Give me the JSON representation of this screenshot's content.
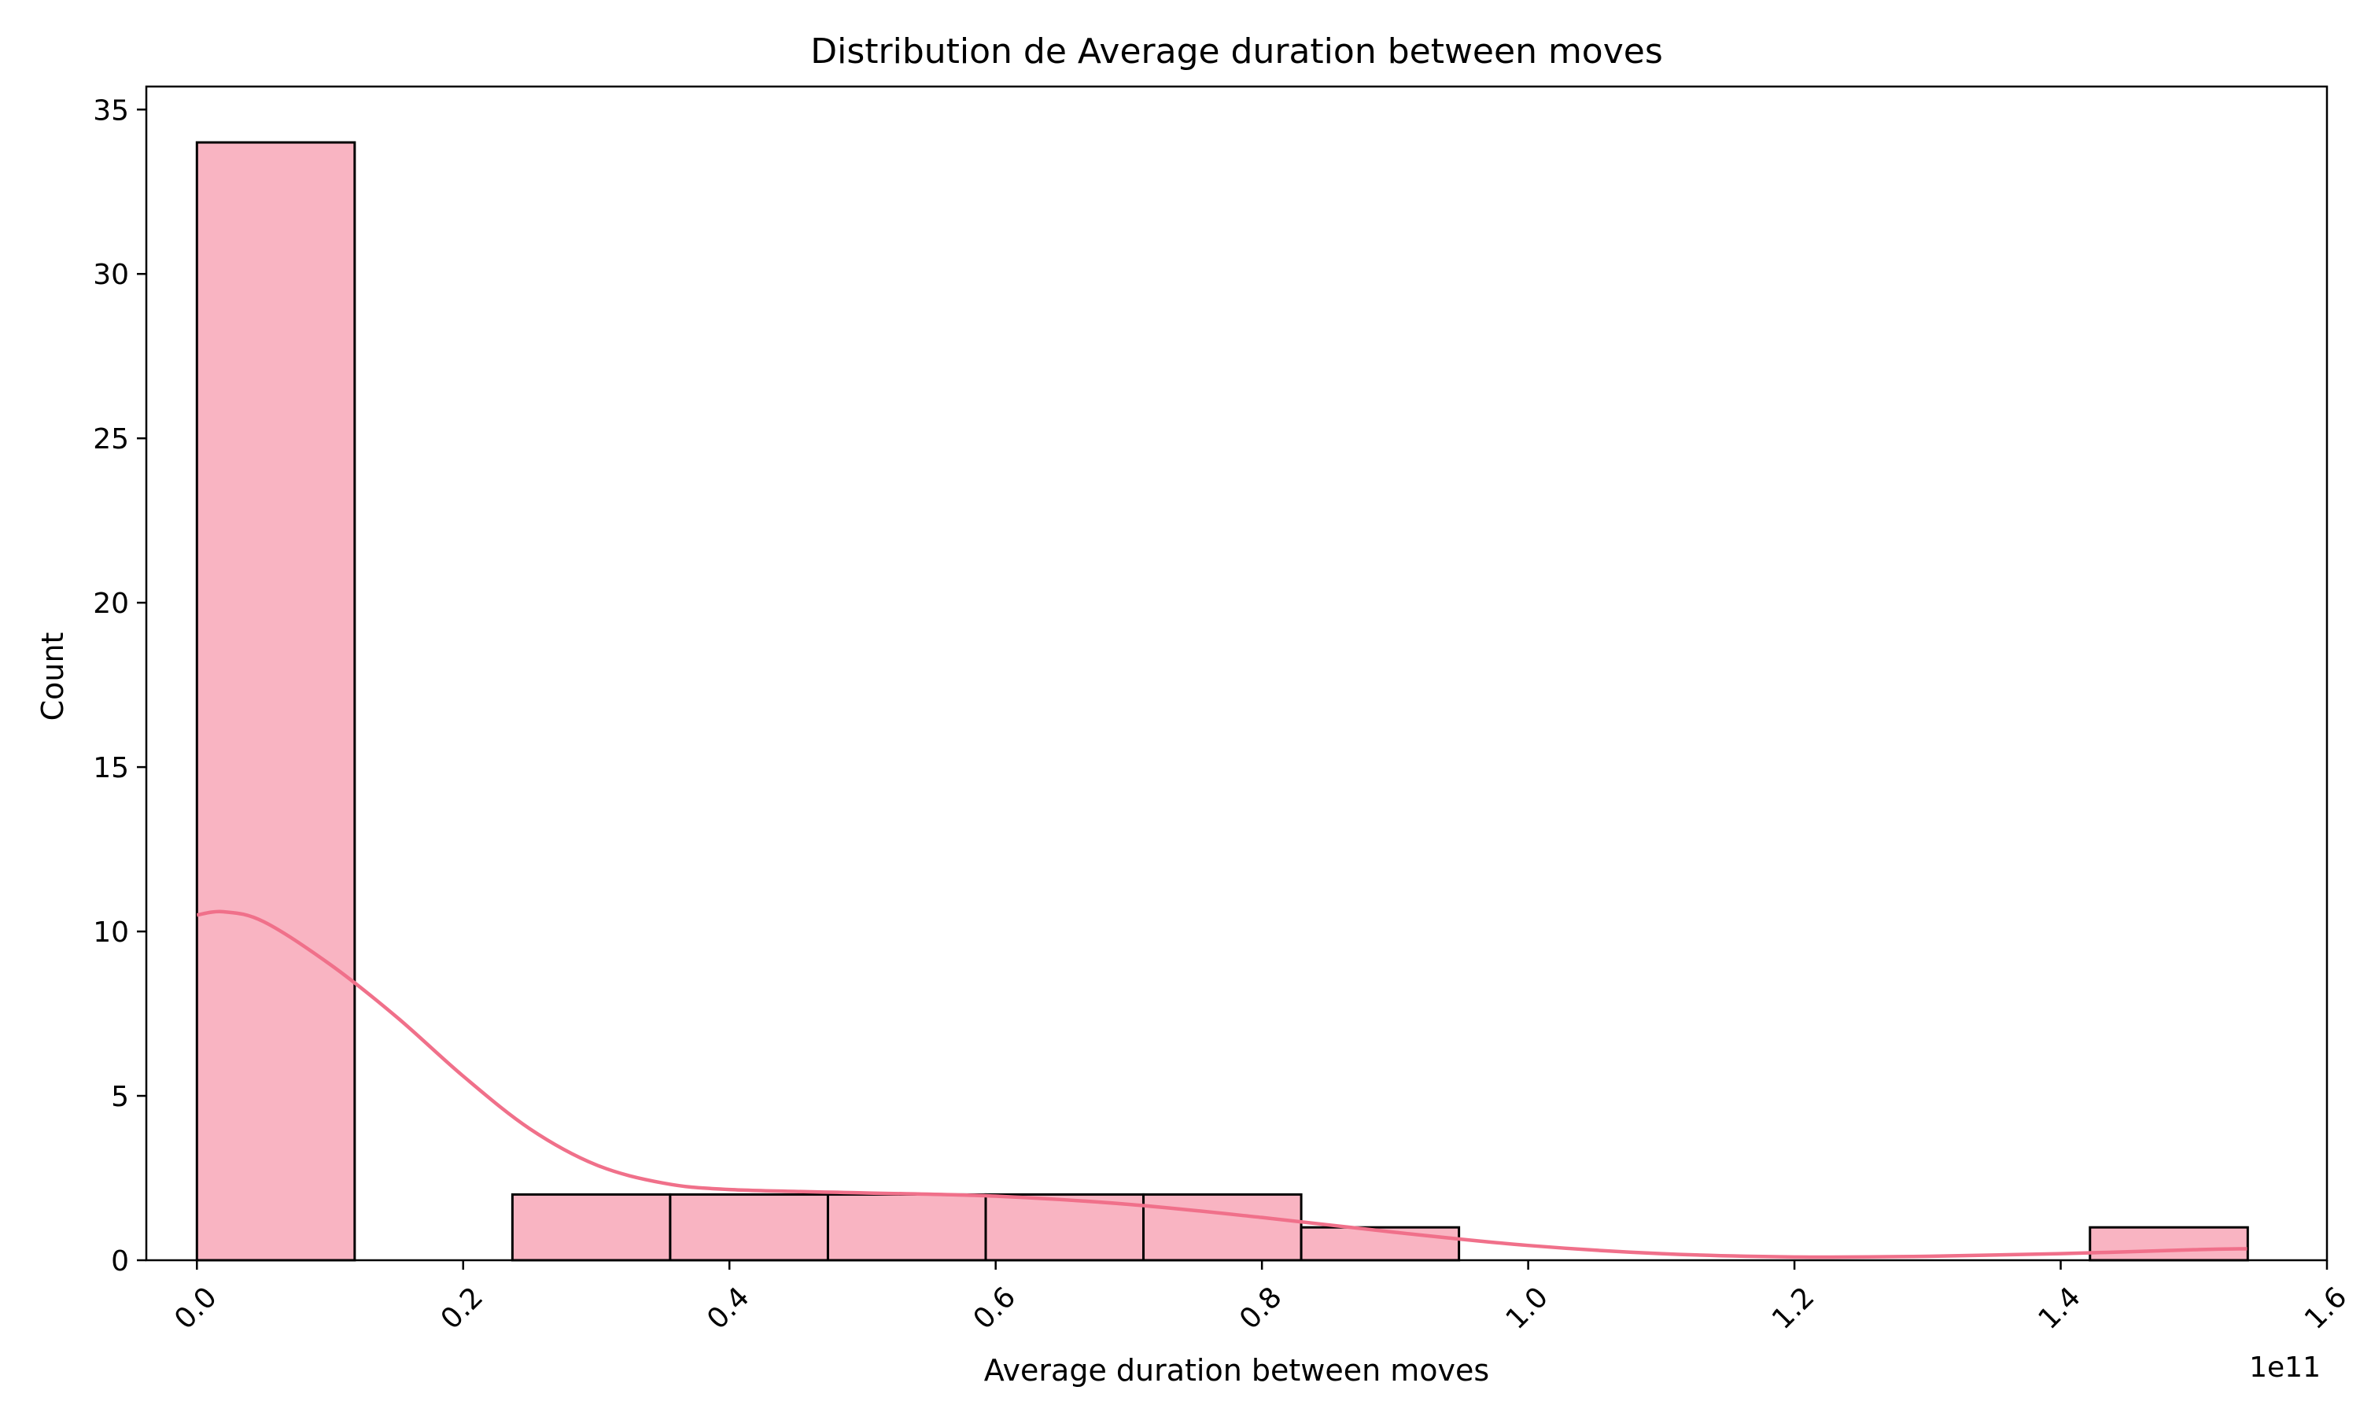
{
  "chart_data": {
    "type": "bar",
    "title": "Distribution de Average duration between moves",
    "xlabel": "Average duration between moves",
    "ylabel": "Count",
    "x_offset_label": "1e11",
    "xlim": [
      -0.038,
      1.6
    ],
    "ylim": [
      0,
      35.7
    ],
    "x_ticks": [
      0.0,
      0.2,
      0.4,
      0.6,
      0.8,
      1.0,
      1.2,
      1.4,
      1.6
    ],
    "x_tick_labels": [
      "0.0",
      "0.2",
      "0.4",
      "0.6",
      "0.8",
      "1.0",
      "1.2",
      "1.4",
      "1.6"
    ],
    "y_ticks": [
      0,
      5,
      10,
      15,
      20,
      25,
      30,
      35
    ],
    "y_tick_labels": [
      "0",
      "5",
      "10",
      "15",
      "20",
      "25",
      "30",
      "35"
    ],
    "bins": [
      0.0,
      0.1185,
      0.237,
      0.3555,
      0.474,
      0.5925,
      0.711,
      0.8295,
      0.948,
      1.0665,
      1.185,
      1.3035,
      1.422,
      1.5405
    ],
    "counts": [
      34,
      0,
      2,
      2,
      2,
      2,
      2,
      1,
      0,
      0,
      0,
      0,
      1
    ],
    "kde": {
      "x": [
        0.0,
        0.02,
        0.05,
        0.1,
        0.15,
        0.2,
        0.25,
        0.3,
        0.35,
        0.4,
        0.5,
        0.6,
        0.7,
        0.8,
        0.9,
        1.0,
        1.1,
        1.2,
        1.3,
        1.4,
        1.5,
        1.54
      ],
      "y": [
        10.5,
        10.6,
        10.3,
        9.0,
        7.4,
        5.6,
        4.0,
        2.9,
        2.35,
        2.15,
        2.05,
        1.95,
        1.7,
        1.3,
        0.85,
        0.45,
        0.2,
        0.1,
        0.12,
        0.2,
        0.32,
        0.35
      ]
    },
    "colors": {
      "bar_fill": "#f9b4c2",
      "bar_edge": "#000000",
      "kde_line": "#f0708a"
    },
    "grid": false,
    "legend": "none"
  }
}
